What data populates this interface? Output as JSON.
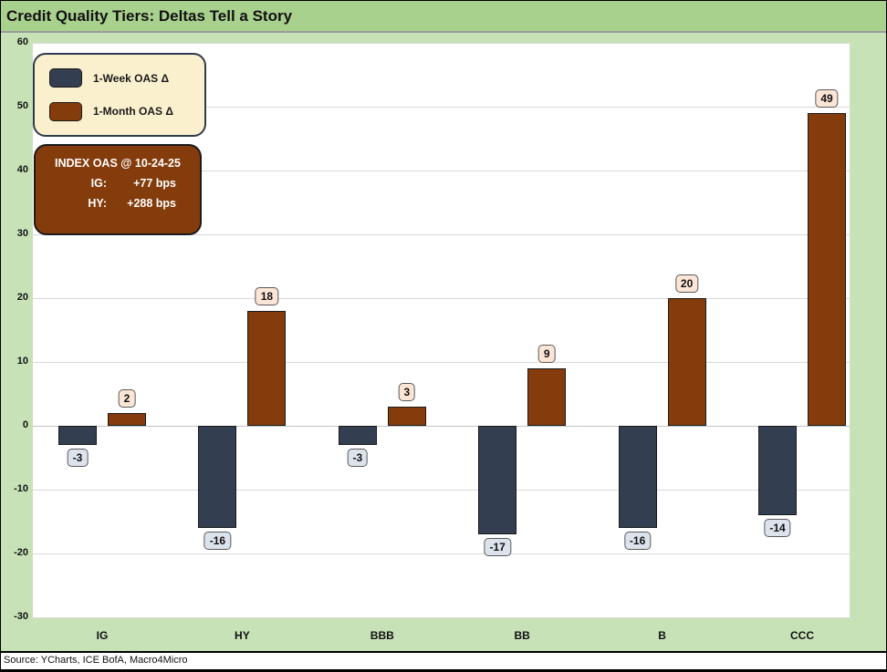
{
  "title": "Credit Quality Tiers: Deltas Tell a Story",
  "footer": {
    "source": "Source: YCharts, ICE BofA, Macro4Micro"
  },
  "legend": {
    "items": [
      {
        "label": "1-Week OAS Δ",
        "color": "#333F50"
      },
      {
        "label": "1-Month OAS Δ",
        "color": "#843C0C"
      }
    ]
  },
  "info_box": {
    "title": "INDEX OAS @ 10-24-25",
    "rows": [
      {
        "label": "IG:",
        "value": "+77 bps"
      },
      {
        "label": "HY:",
        "value": "+288 bps"
      }
    ]
  },
  "chart_data": {
    "type": "bar",
    "title": "Credit Quality Tiers: Deltas Tell a Story",
    "categories": [
      "IG",
      "HY",
      "BBB",
      "BB",
      "B",
      "CCC"
    ],
    "series": [
      {
        "name": "1-Week OAS Δ",
        "color": "#333F50",
        "label_bg": "#DDE3EC",
        "values": [
          -3,
          -16,
          -3,
          -17,
          -16,
          -14
        ]
      },
      {
        "name": "1-Month OAS Δ",
        "color": "#843C0C",
        "label_bg": "#FBE5D6",
        "values": [
          2,
          18,
          3,
          9,
          20,
          49
        ]
      }
    ],
    "ylim": [
      -30,
      60
    ],
    "ytick_step": 10,
    "grid": true,
    "legend_position": "top-left",
    "units": "bps"
  },
  "colors": {
    "title_bar_bg": "#A9D18E",
    "chart_bg": "#C8E2B8",
    "plot_bg": "#FFFFFF",
    "gridline": "#D9D9D9",
    "week_bar": "#333F50",
    "month_bar": "#843C0C",
    "negative_label_bg": "#DDE3EC",
    "positive_label_bg": "#FBE5D6",
    "legend_bg": "#FBF0CE",
    "legend_border": "#2E3B4E",
    "info_box_bg": "#843C0C"
  }
}
